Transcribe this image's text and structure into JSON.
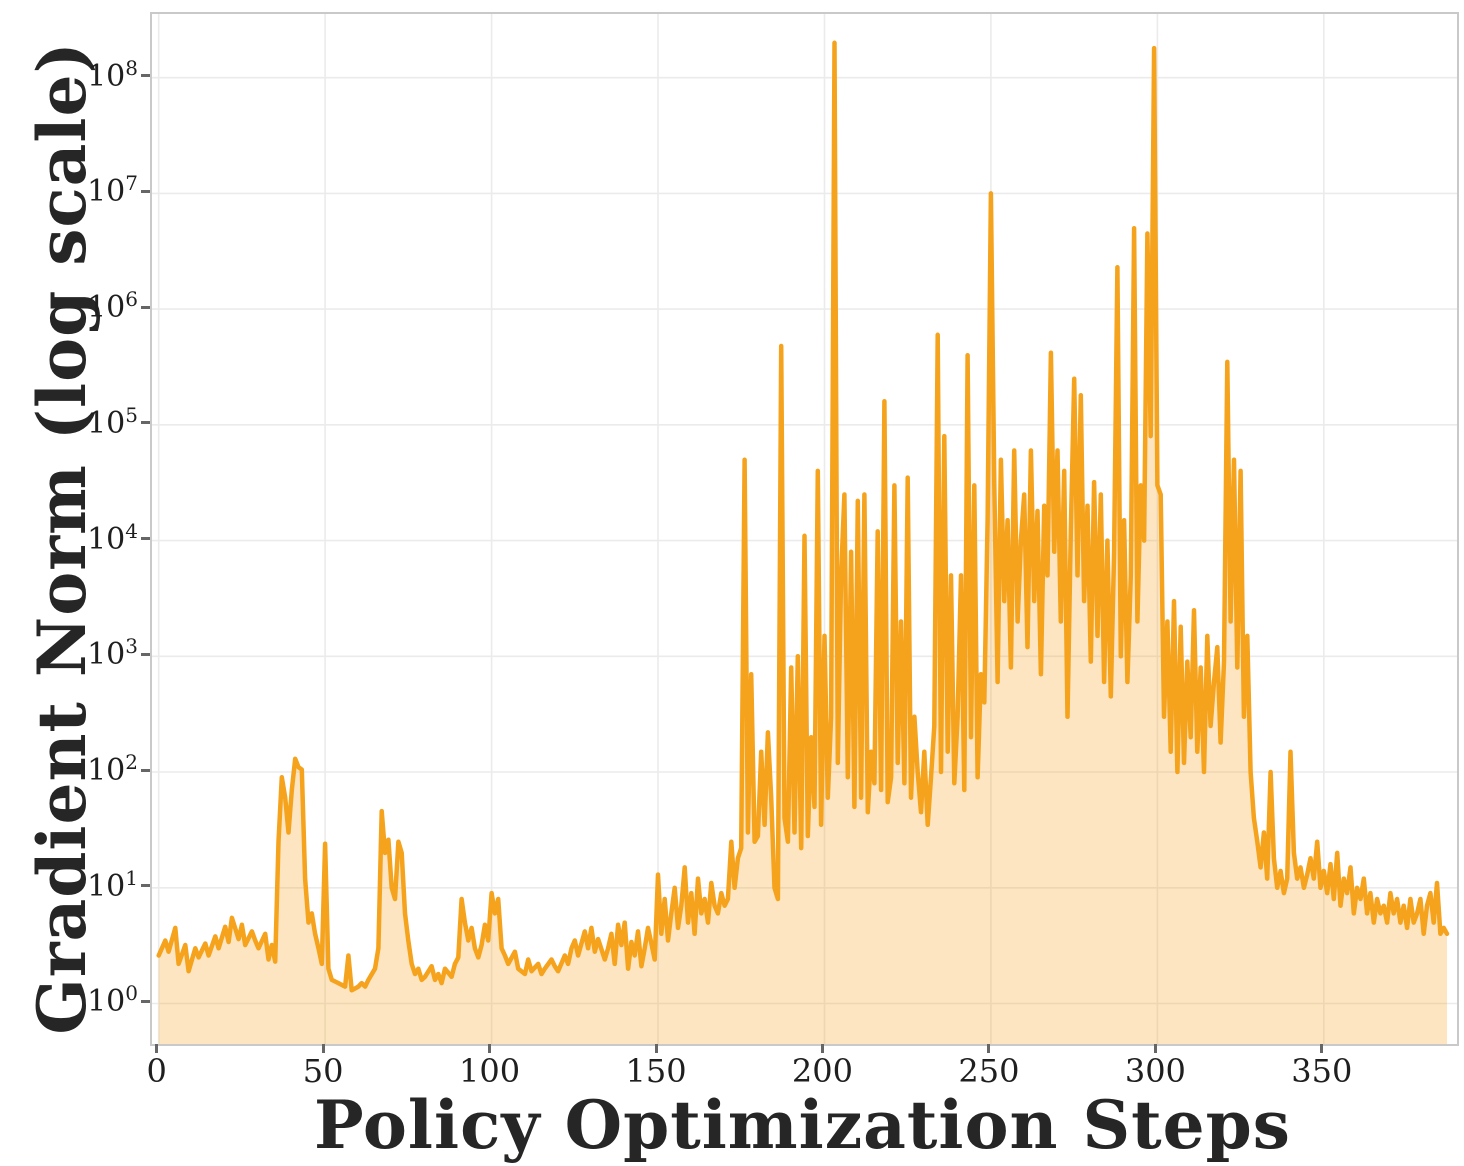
{
  "chart_data": {
    "type": "line",
    "title": "",
    "xlabel": "Policy Optimization Steps",
    "ylabel": "Gradient Norm (log scale)",
    "series_name": "gradient_norm",
    "line_color": "#F5A21C",
    "fill_color": "#F5A21C",
    "fill_opacity": 0.28,
    "grid_color": "#ebebeb",
    "spine_color": "#c9c9c9",
    "text_color": "#1f1f1f",
    "grid": true,
    "legend": false,
    "xlim": [
      -2,
      390
    ],
    "ylog_lim": [
      -0.35,
      8.55
    ],
    "xticks": [
      0,
      50,
      100,
      150,
      200,
      250,
      300,
      350
    ],
    "ytick_exponents": [
      0,
      1,
      2,
      3,
      4,
      5,
      6,
      7,
      8
    ],
    "points": [
      [
        0,
        2.6
      ],
      [
        2,
        3.5
      ],
      [
        3,
        2.8
      ],
      [
        5,
        4.5
      ],
      [
        6,
        2.2
      ],
      [
        8,
        3.2
      ],
      [
        9,
        1.9
      ],
      [
        11,
        3.0
      ],
      [
        12,
        2.5
      ],
      [
        14,
        3.3
      ],
      [
        15,
        2.6
      ],
      [
        17,
        3.8
      ],
      [
        18,
        3.0
      ],
      [
        20,
        4.6
      ],
      [
        21,
        3.4
      ],
      [
        22,
        5.5
      ],
      [
        24,
        3.6
      ],
      [
        25,
        4.8
      ],
      [
        26,
        3.2
      ],
      [
        28,
        4.2
      ],
      [
        29,
        3.5
      ],
      [
        30,
        3.0
      ],
      [
        32,
        4.0
      ],
      [
        33,
        2.4
      ],
      [
        34,
        3.2
      ],
      [
        35,
        2.3
      ],
      [
        36,
        25
      ],
      [
        37,
        90
      ],
      [
        38,
        60
      ],
      [
        39,
        30
      ],
      [
        40,
        70
      ],
      [
        41,
        130
      ],
      [
        42,
        110
      ],
      [
        43,
        105
      ],
      [
        44,
        12
      ],
      [
        45,
        5
      ],
      [
        46,
        6
      ],
      [
        47,
        4
      ],
      [
        48,
        3
      ],
      [
        49,
        2.2
      ],
      [
        50,
        24
      ],
      [
        51,
        2.0
      ],
      [
        52,
        1.6
      ],
      [
        54,
        1.5
      ],
      [
        56,
        1.4
      ],
      [
        57,
        2.6
      ],
      [
        58,
        1.3
      ],
      [
        60,
        1.4
      ],
      [
        61,
        1.5
      ],
      [
        62,
        1.4
      ],
      [
        63,
        1.6
      ],
      [
        65,
        2.0
      ],
      [
        66,
        3.0
      ],
      [
        67,
        46
      ],
      [
        68,
        20
      ],
      [
        69,
        26
      ],
      [
        70,
        10
      ],
      [
        71,
        8
      ],
      [
        72,
        25
      ],
      [
        73,
        20
      ],
      [
        74,
        6
      ],
      [
        75,
        3.5
      ],
      [
        76,
        2.2
      ],
      [
        77,
        1.8
      ],
      [
        78,
        2.0
      ],
      [
        79,
        1.6
      ],
      [
        80,
        1.7
      ],
      [
        82,
        2.1
      ],
      [
        83,
        1.6
      ],
      [
        84,
        1.8
      ],
      [
        85,
        1.5
      ],
      [
        86,
        2.0
      ],
      [
        88,
        1.7
      ],
      [
        89,
        2.2
      ],
      [
        90,
        2.5
      ],
      [
        91,
        8
      ],
      [
        92,
        5
      ],
      [
        93,
        3.5
      ],
      [
        94,
        4.5
      ],
      [
        95,
        3
      ],
      [
        96,
        2.5
      ],
      [
        97,
        3.2
      ],
      [
        98,
        4.8
      ],
      [
        99,
        3.5
      ],
      [
        100,
        9
      ],
      [
        101,
        6
      ],
      [
        102,
        8
      ],
      [
        103,
        3
      ],
      [
        104,
        2.6
      ],
      [
        105,
        2.2
      ],
      [
        107,
        2.8
      ],
      [
        108,
        2.0
      ],
      [
        110,
        1.8
      ],
      [
        111,
        2.4
      ],
      [
        112,
        1.9
      ],
      [
        114,
        2.2
      ],
      [
        115,
        1.8
      ],
      [
        116,
        2.0
      ],
      [
        118,
        2.4
      ],
      [
        119,
        2.1
      ],
      [
        120,
        1.9
      ],
      [
        122,
        2.6
      ],
      [
        123,
        2.2
      ],
      [
        124,
        3.0
      ],
      [
        125,
        3.5
      ],
      [
        126,
        2.6
      ],
      [
        128,
        4.2
      ],
      [
        129,
        3.0
      ],
      [
        130,
        4.5
      ],
      [
        131,
        2.8
      ],
      [
        132,
        3.6
      ],
      [
        134,
        2.4
      ],
      [
        135,
        3.0
      ],
      [
        136,
        4.0
      ],
      [
        137,
        2.2
      ],
      [
        138,
        4.8
      ],
      [
        139,
        3.2
      ],
      [
        140,
        5.0
      ],
      [
        141,
        2.0
      ],
      [
        142,
        3.4
      ],
      [
        143,
        2.6
      ],
      [
        144,
        4.2
      ],
      [
        145,
        2.1
      ],
      [
        146,
        3.0
      ],
      [
        147,
        4.5
      ],
      [
        148,
        3.3
      ],
      [
        149,
        2.4
      ],
      [
        150,
        13
      ],
      [
        151,
        4
      ],
      [
        152,
        8
      ],
      [
        153,
        3.5
      ],
      [
        154,
        6
      ],
      [
        155,
        10
      ],
      [
        156,
        4.5
      ],
      [
        157,
        7
      ],
      [
        158,
        15
      ],
      [
        159,
        5
      ],
      [
        160,
        9
      ],
      [
        161,
        4
      ],
      [
        162,
        12
      ],
      [
        163,
        6
      ],
      [
        164,
        8
      ],
      [
        165,
        5
      ],
      [
        166,
        11
      ],
      [
        167,
        7
      ],
      [
        168,
        6
      ],
      [
        169,
        9
      ],
      [
        170,
        7
      ],
      [
        171,
        8
      ],
      [
        172,
        25
      ],
      [
        173,
        10
      ],
      [
        174,
        18
      ],
      [
        175,
        22
      ],
      [
        176,
        50000.0
      ],
      [
        177,
        30
      ],
      [
        178,
        700
      ],
      [
        179,
        25
      ],
      [
        180,
        28
      ],
      [
        181,
        150
      ],
      [
        182,
        35
      ],
      [
        183,
        220
      ],
      [
        184,
        60
      ],
      [
        185,
        10
      ],
      [
        186,
        8
      ],
      [
        187,
        480000.0
      ],
      [
        188,
        40
      ],
      [
        189,
        25
      ],
      [
        190,
        800
      ],
      [
        191,
        30
      ],
      [
        192,
        1000
      ],
      [
        193,
        22
      ],
      [
        194,
        11000.0
      ],
      [
        195,
        28
      ],
      [
        196,
        200
      ],
      [
        197,
        50
      ],
      [
        198,
        40000.0
      ],
      [
        199,
        35
      ],
      [
        200,
        1500
      ],
      [
        201,
        60
      ],
      [
        202,
        300
      ],
      [
        203,
        200000000.0
      ],
      [
        204,
        120
      ],
      [
        205,
        5000
      ],
      [
        206,
        25000.0
      ],
      [
        207,
        90
      ],
      [
        208,
        8000
      ],
      [
        209,
        50
      ],
      [
        210,
        22000.0
      ],
      [
        211,
        60
      ],
      [
        212,
        25000.0
      ],
      [
        213,
        45
      ],
      [
        214,
        150
      ],
      [
        215,
        80
      ],
      [
        216,
        12000.0
      ],
      [
        217,
        70
      ],
      [
        218,
        160000.0
      ],
      [
        219,
        55
      ],
      [
        220,
        90
      ],
      [
        221,
        30000.0
      ],
      [
        222,
        120
      ],
      [
        223,
        2000
      ],
      [
        224,
        80
      ],
      [
        225,
        35000.0
      ],
      [
        226,
        60
      ],
      [
        227,
        300
      ],
      [
        228,
        100
      ],
      [
        229,
        45
      ],
      [
        230,
        150
      ],
      [
        231,
        35
      ],
      [
        232,
        90
      ],
      [
        233,
        250
      ],
      [
        234,
        600000.0
      ],
      [
        235,
        100
      ],
      [
        236,
        80000.0
      ],
      [
        237,
        150
      ],
      [
        238,
        5000
      ],
      [
        239,
        80
      ],
      [
        240,
        300
      ],
      [
        241,
        5000.0
      ],
      [
        242,
        70
      ],
      [
        243,
        400000.0
      ],
      [
        244,
        200
      ],
      [
        245,
        30000.0
      ],
      [
        246,
        90
      ],
      [
        247,
        700
      ],
      [
        248,
        400
      ],
      [
        249,
        15000.0
      ],
      [
        250,
        10000000.0
      ],
      [
        251,
        30000.0
      ],
      [
        252,
        600
      ],
      [
        253,
        50000.0
      ],
      [
        254,
        3000
      ],
      [
        255,
        15000.0
      ],
      [
        256,
        800
      ],
      [
        257,
        60000.0
      ],
      [
        258,
        2000
      ],
      [
        259,
        10000.0
      ],
      [
        260,
        25000.0
      ],
      [
        261,
        1200
      ],
      [
        262,
        60000.0
      ],
      [
        263,
        3000
      ],
      [
        264,
        18000.0
      ],
      [
        265,
        700
      ],
      [
        266,
        20000.0
      ],
      [
        267,
        5000
      ],
      [
        268,
        420000.0
      ],
      [
        269,
        8000
      ],
      [
        270,
        60000.0
      ],
      [
        271,
        2000
      ],
      [
        272,
        40000.0
      ],
      [
        273,
        300
      ],
      [
        274,
        12000.0
      ],
      [
        275,
        250000.0
      ],
      [
        276,
        5000
      ],
      [
        277,
        180000.0
      ],
      [
        278,
        3000
      ],
      [
        279,
        20000.0
      ],
      [
        280,
        900
      ],
      [
        281,
        32000.0
      ],
      [
        282,
        1500
      ],
      [
        283,
        25000.0
      ],
      [
        284,
        600
      ],
      [
        285,
        10000.0
      ],
      [
        286,
        450
      ],
      [
        287,
        8000
      ],
      [
        288,
        2300000.0
      ],
      [
        289,
        1000
      ],
      [
        290,
        15000.0
      ],
      [
        291,
        600
      ],
      [
        292,
        5000.0
      ],
      [
        293,
        5000000.0
      ],
      [
        294,
        2000
      ],
      [
        295,
        30000.0
      ],
      [
        296,
        10000.0
      ],
      [
        297,
        4500000.0
      ],
      [
        298,
        80000.0
      ],
      [
        299,
        180000000.0
      ],
      [
        300,
        30000.0
      ],
      [
        301,
        25000.0
      ],
      [
        302,
        300
      ],
      [
        303,
        2000
      ],
      [
        304,
        150
      ],
      [
        305,
        3000
      ],
      [
        306,
        100
      ],
      [
        307,
        1800
      ],
      [
        308,
        120
      ],
      [
        309,
        900
      ],
      [
        310,
        200
      ],
      [
        311,
        2500
      ],
      [
        312,
        150
      ],
      [
        313,
        800
      ],
      [
        314,
        100
      ],
      [
        315,
        1500
      ],
      [
        316,
        250
      ],
      [
        317,
        600
      ],
      [
        318,
        1200
      ],
      [
        319,
        180
      ],
      [
        320,
        900
      ],
      [
        321,
        350000.0
      ],
      [
        322,
        2000
      ],
      [
        323,
        50000.0
      ],
      [
        324,
        800
      ],
      [
        325,
        40000.0
      ],
      [
        326,
        300
      ],
      [
        327,
        1500
      ],
      [
        328,
        100
      ],
      [
        329,
        40
      ],
      [
        330,
        25
      ],
      [
        331,
        15
      ],
      [
        332,
        30
      ],
      [
        333,
        12
      ],
      [
        334,
        100
      ],
      [
        335,
        18
      ],
      [
        336,
        10
      ],
      [
        337,
        14
      ],
      [
        338,
        9
      ],
      [
        339,
        12
      ],
      [
        340,
        150
      ],
      [
        341,
        20
      ],
      [
        342,
        12
      ],
      [
        343,
        15
      ],
      [
        344,
        10
      ],
      [
        345,
        13
      ],
      [
        346,
        18
      ],
      [
        347,
        12
      ],
      [
        348,
        25
      ],
      [
        349,
        10
      ],
      [
        350,
        14
      ],
      [
        351,
        9
      ],
      [
        352,
        16
      ],
      [
        353,
        8
      ],
      [
        354,
        20
      ],
      [
        355,
        7
      ],
      [
        356,
        12
      ],
      [
        357,
        9
      ],
      [
        358,
        15
      ],
      [
        359,
        6
      ],
      [
        360,
        10
      ],
      [
        361,
        8
      ],
      [
        362,
        12
      ],
      [
        363,
        6
      ],
      [
        364,
        9
      ],
      [
        365,
        5
      ],
      [
        366,
        8
      ],
      [
        367,
        6
      ],
      [
        368,
        7
      ],
      [
        369,
        5
      ],
      [
        370,
        9
      ],
      [
        371,
        6
      ],
      [
        372,
        8
      ],
      [
        373,
        5
      ],
      [
        374,
        7
      ],
      [
        375,
        4.5
      ],
      [
        376,
        8
      ],
      [
        377,
        5
      ],
      [
        378,
        6
      ],
      [
        379,
        8
      ],
      [
        380,
        4
      ],
      [
        381,
        7
      ],
      [
        382,
        9
      ],
      [
        383,
        5
      ],
      [
        384,
        11
      ],
      [
        385,
        4
      ],
      [
        386,
        4.5
      ],
      [
        387,
        4
      ]
    ]
  }
}
